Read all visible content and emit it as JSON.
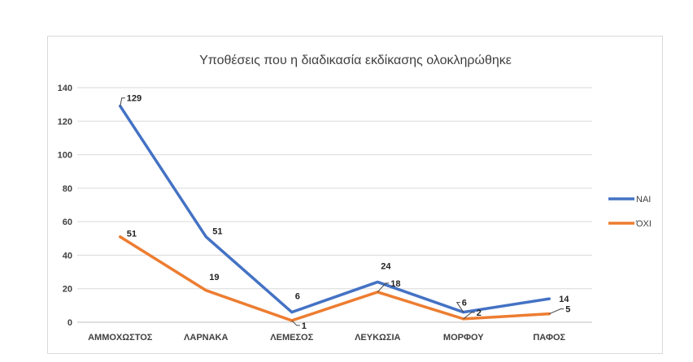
{
  "chart_data": {
    "type": "line",
    "title": "Υποθέσεις που η διαδικασία εκδίκασης ολοκληρώθηκε",
    "categories": [
      "ΑΜΜΟΧΩΣΤΟΣ",
      "ΛΑΡΝΑΚΑ",
      "ΛΕΜΕΣΟΣ",
      "ΛΕΥΚΩΣΙΑ",
      "ΜΟΡΦΟΥ",
      "ΠΑΦΟΣ"
    ],
    "series": [
      {
        "name": "ΝΑΙ",
        "values": [
          129,
          51,
          6,
          24,
          6,
          14
        ],
        "color": "#4472c4"
      },
      {
        "name": "ΌΧΙ",
        "values": [
          51,
          19,
          1,
          18,
          2,
          5
        ],
        "color": "#ed7d31"
      }
    ],
    "ylim": [
      0,
      140
    ],
    "yticks": [
      "0",
      "20",
      "40",
      "60",
      "80",
      "100",
      "120",
      "140"
    ],
    "grid": true,
    "legend": "right"
  }
}
